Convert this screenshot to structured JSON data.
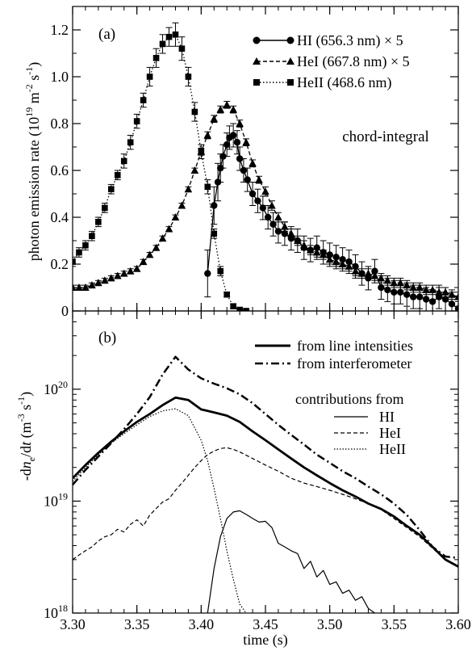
{
  "chart_data": [
    {
      "panel_label": "(a)",
      "type": "scatter",
      "ylabel": "photon emission rate (10^19 m^-2 s^-1)",
      "ylabel_parts": {
        "main": "photon emission rate (10",
        "exp1": "19",
        "mid1": " m",
        "exp2": "-2",
        "mid2": " s",
        "exp3": "-1",
        "end": ")"
      },
      "xlim": [
        3.3,
        3.6
      ],
      "ylim": [
        0,
        1.3
      ],
      "yticks": [
        0,
        0.2,
        0.4,
        0.6,
        0.8,
        1.0,
        1.2
      ],
      "ytick_labels": [
        "0",
        "0.2",
        "0.4",
        "0.6",
        "0.8",
        "1.0",
        "1.2"
      ],
      "annotation": "chord-integral",
      "legend_position": "top-right",
      "series": [
        {
          "name": "HI (656.3 nm) × 5",
          "marker": "circle",
          "linestyle": "solid",
          "x": [
            3.405,
            3.41,
            3.413,
            3.415,
            3.417,
            3.42,
            3.422,
            3.425,
            3.428,
            3.43,
            3.433,
            3.436,
            3.44,
            3.444,
            3.448,
            3.452,
            3.456,
            3.46,
            3.465,
            3.47,
            3.475,
            3.48,
            3.485,
            3.49,
            3.495,
            3.5,
            3.505,
            3.51,
            3.515,
            3.52,
            3.525,
            3.53,
            3.535,
            3.54,
            3.545,
            3.55,
            3.555,
            3.56,
            3.565,
            3.57,
            3.575,
            3.58,
            3.585,
            3.59,
            3.595,
            3.6
          ],
          "y": [
            0.16,
            0.45,
            0.55,
            0.61,
            0.66,
            0.71,
            0.74,
            0.75,
            0.72,
            0.65,
            0.6,
            0.56,
            0.5,
            0.47,
            0.44,
            0.4,
            0.37,
            0.34,
            0.33,
            0.31,
            0.3,
            0.27,
            0.26,
            0.27,
            0.25,
            0.24,
            0.23,
            0.22,
            0.21,
            0.19,
            0.16,
            0.14,
            0.17,
            0.1,
            0.09,
            0.08,
            0.08,
            0.07,
            0.06,
            0.06,
            0.05,
            0.04,
            0.06,
            0.05,
            0.03,
            0.01
          ],
          "yerr": [
            0.1,
            0.08,
            0.08,
            0.06,
            0.05,
            0.05,
            0.05,
            0.05,
            0.05,
            0.05,
            0.05,
            0.05,
            0.05,
            0.05,
            0.05,
            0.05,
            0.05,
            0.05,
            0.05,
            0.05,
            0.05,
            0.05,
            0.05,
            0.05,
            0.05,
            0.05,
            0.05,
            0.05,
            0.05,
            0.05,
            0.05,
            0.05,
            0.05,
            0.05,
            0.05,
            0.05,
            0.05,
            0.05,
            0.05,
            0.05,
            0.05,
            0.05,
            0.05,
            0.05,
            0.05,
            0.05
          ]
        },
        {
          "name": "HeI (667.8 nm) × 5",
          "marker": "triangle",
          "linestyle": "dashed",
          "x": [
            3.3,
            3.305,
            3.31,
            3.315,
            3.32,
            3.325,
            3.33,
            3.335,
            3.34,
            3.345,
            3.35,
            3.355,
            3.36,
            3.365,
            3.37,
            3.375,
            3.38,
            3.385,
            3.39,
            3.395,
            3.4,
            3.405,
            3.41,
            3.415,
            3.42,
            3.425,
            3.43,
            3.435,
            3.44,
            3.445,
            3.45,
            3.455,
            3.46,
            3.465,
            3.47,
            3.475,
            3.48,
            3.485,
            3.49,
            3.495,
            3.5,
            3.505,
            3.51,
            3.515,
            3.52,
            3.525,
            3.53,
            3.535,
            3.54,
            3.545,
            3.55,
            3.555,
            3.56,
            3.565,
            3.57,
            3.575,
            3.58,
            3.585,
            3.59,
            3.595,
            3.6
          ],
          "y": [
            0.1,
            0.1,
            0.1,
            0.11,
            0.12,
            0.13,
            0.14,
            0.15,
            0.16,
            0.17,
            0.18,
            0.21,
            0.24,
            0.27,
            0.31,
            0.35,
            0.4,
            0.45,
            0.52,
            0.6,
            0.68,
            0.75,
            0.82,
            0.86,
            0.88,
            0.86,
            0.8,
            0.72,
            0.63,
            0.56,
            0.51,
            0.45,
            0.4,
            0.36,
            0.33,
            0.3,
            0.28,
            0.26,
            0.25,
            0.24,
            0.22,
            0.21,
            0.2,
            0.19,
            0.17,
            0.16,
            0.16,
            0.15,
            0.14,
            0.13,
            0.12,
            0.12,
            0.11,
            0.1,
            0.1,
            0.09,
            0.09,
            0.08,
            0.08,
            0.07,
            0.06
          ],
          "yerr": [
            0.01,
            0.01,
            0.01,
            0.01,
            0.01,
            0.01,
            0.01,
            0.01,
            0.01,
            0.01,
            0.01,
            0.01,
            0.01,
            0.01,
            0.01,
            0.01,
            0.01,
            0.01,
            0.01,
            0.01,
            0.015,
            0.015,
            0.015,
            0.015,
            0.015,
            0.015,
            0.015,
            0.015,
            0.015,
            0.015,
            0.02,
            0.02,
            0.02,
            0.02,
            0.02,
            0.02,
            0.02,
            0.02,
            0.02,
            0.02,
            0.02,
            0.02,
            0.02,
            0.02,
            0.02,
            0.02,
            0.02,
            0.02,
            0.02,
            0.02,
            0.02,
            0.02,
            0.02,
            0.02,
            0.02,
            0.02,
            0.02,
            0.02,
            0.02,
            0.02,
            0.02
          ]
        },
        {
          "name": "HeII (468.6 nm)",
          "marker": "square",
          "linestyle": "dotted",
          "x": [
            3.3,
            3.305,
            3.31,
            3.315,
            3.32,
            3.325,
            3.33,
            3.335,
            3.34,
            3.345,
            3.35,
            3.355,
            3.36,
            3.365,
            3.37,
            3.375,
            3.38,
            3.385,
            3.39,
            3.395,
            3.4,
            3.405,
            3.41,
            3.415,
            3.42,
            3.425,
            3.43,
            3.435
          ],
          "y": [
            0.21,
            0.25,
            0.28,
            0.32,
            0.38,
            0.44,
            0.52,
            0.58,
            0.64,
            0.72,
            0.81,
            0.9,
            1.0,
            1.08,
            1.14,
            1.17,
            1.18,
            1.12,
            1.0,
            0.85,
            0.68,
            0.53,
            0.33,
            0.17,
            0.07,
            0.02,
            0.005,
            0.0
          ],
          "yerr": [
            0.02,
            0.02,
            0.02,
            0.02,
            0.02,
            0.02,
            0.02,
            0.02,
            0.03,
            0.03,
            0.03,
            0.03,
            0.04,
            0.04,
            0.04,
            0.04,
            0.05,
            0.05,
            0.04,
            0.04,
            0.03,
            0.03,
            0.02,
            0.02,
            0.01,
            0.01,
            0.005,
            0.005
          ]
        }
      ]
    },
    {
      "panel_label": "(b)",
      "type": "line",
      "ylabel_parts": {
        "pre": "-d",
        "n": "n",
        "sub": "e",
        "slash": "/d",
        "t": "t",
        "space": " (m",
        "exp1": "-3",
        "mid": " s",
        "exp2": "-1",
        "end": ")"
      },
      "xlabel": "time (s)",
      "xlim": [
        3.3,
        3.6
      ],
      "ylim": [
        1e+18,
        5e+20
      ],
      "yscale": "log",
      "xticks": [
        3.3,
        3.35,
        3.4,
        3.45,
        3.5,
        3.55,
        3.6
      ],
      "xtick_labels": [
        "3.30",
        "3.35",
        "3.40",
        "3.45",
        "3.50",
        "3.55",
        "3.60"
      ],
      "ytick_labels": [
        {
          "value": 1e+18,
          "base": "10",
          "exp": "18"
        },
        {
          "value": 1e+19,
          "base": "10",
          "exp": "19"
        },
        {
          "value": 1e+20,
          "base": "10",
          "exp": "20"
        }
      ],
      "legend_position": "top-right",
      "contributions_heading": "contributions from",
      "series": [
        {
          "name": "from line intensities",
          "linestyle": "solid-thick",
          "x": [
            3.3,
            3.31,
            3.32,
            3.33,
            3.34,
            3.35,
            3.36,
            3.37,
            3.38,
            3.39,
            3.4,
            3.41,
            3.42,
            3.43,
            3.44,
            3.45,
            3.46,
            3.47,
            3.48,
            3.49,
            3.5,
            3.51,
            3.52,
            3.53,
            3.54,
            3.55,
            3.56,
            3.57,
            3.58,
            3.59,
            3.6
          ],
          "y": [
            1.6e+19,
            2.1e+19,
            2.7e+19,
            3.4e+19,
            4.2e+19,
            5.1e+19,
            6e+19,
            7.2e+19,
            8.4e+19,
            8e+19,
            6.6e+19,
            6.2e+19,
            5.8e+19,
            5.1e+19,
            4.2e+19,
            3.5e+19,
            2.9e+19,
            2.4e+19,
            2e+19,
            1.7e+19,
            1.45e+19,
            1.25e+19,
            1.1e+19,
            9.5e+18,
            8.5e+18,
            7.3e+18,
            6e+18,
            5e+18,
            3.9e+18,
            3e+18,
            2.6e+18
          ]
        },
        {
          "name": "from interferometer",
          "linestyle": "dashdot",
          "x": [
            3.3,
            3.31,
            3.32,
            3.33,
            3.34,
            3.35,
            3.36,
            3.37,
            3.38,
            3.39,
            3.4,
            3.41,
            3.42,
            3.43,
            3.44,
            3.45,
            3.46,
            3.47,
            3.48,
            3.49,
            3.5,
            3.51,
            3.52,
            3.53,
            3.54,
            3.55,
            3.56,
            3.57,
            3.58,
            3.59,
            3.6
          ],
          "y": [
            1.4e+19,
            1.9e+19,
            2.5e+19,
            3.3e+19,
            4.4e+19,
            6e+19,
            8.5e+19,
            1.35e+20,
            1.95e+20,
            1.5e+20,
            1.25e+20,
            1.12e+20,
            1.02e+20,
            9e+19,
            7.5e+19,
            6e+19,
            4.8e+19,
            3.9e+19,
            3.2e+19,
            2.6e+19,
            2.2e+19,
            1.85e+19,
            1.6e+19,
            1.35e+19,
            1.15e+19,
            9.5e+18,
            7.5e+18,
            5.5e+18,
            3.9e+18,
            3.2e+18,
            3.1e+18
          ]
        },
        {
          "name": "HI",
          "linestyle": "solid-thin",
          "x": [
            3.405,
            3.41,
            3.415,
            3.42,
            3.425,
            3.43,
            3.435,
            3.44,
            3.445,
            3.45,
            3.455,
            3.46,
            3.465,
            3.47,
            3.475,
            3.48,
            3.485,
            3.49,
            3.495,
            3.5,
            3.505,
            3.51,
            3.515,
            3.52,
            3.525,
            3.53,
            3.535
          ],
          "y": [
            1e+18,
            2.5e+18,
            4.8e+18,
            7e+18,
            8e+18,
            8.2e+18,
            7.6e+18,
            7e+18,
            6.5e+18,
            6.6e+18,
            5.8e+18,
            4.2e+18,
            3.9e+18,
            3.6e+18,
            3.4e+18,
            2.5e+18,
            2.9e+18,
            2.1e+18,
            2.4e+18,
            1.8e+18,
            1.9e+18,
            1.5e+18,
            1.6e+18,
            1.3e+18,
            1.4e+18,
            1.1e+18,
            1e+18
          ]
        },
        {
          "name": "HeI",
          "linestyle": "dashed",
          "x": [
            3.3,
            3.305,
            3.31,
            3.315,
            3.32,
            3.325,
            3.33,
            3.335,
            3.34,
            3.345,
            3.35,
            3.355,
            3.36,
            3.365,
            3.37,
            3.375,
            3.38,
            3.385,
            3.39,
            3.395,
            3.4,
            3.405,
            3.41,
            3.415,
            3.42,
            3.425,
            3.43,
            3.44,
            3.45,
            3.46,
            3.47,
            3.48,
            3.49,
            3.5,
            3.51,
            3.52,
            3.53,
            3.54,
            3.55,
            3.56,
            3.57,
            3.58,
            3.59,
            3.6
          ],
          "y": [
            3e+18,
            3.3e+18,
            3.6e+18,
            3.9e+18,
            4.4e+18,
            4.8e+18,
            5e+18,
            5.6e+18,
            5.3e+18,
            6.2e+18,
            6.8e+18,
            6e+18,
            7.5e+18,
            8.6e+18,
            9.8e+18,
            1.05e+19,
            1.25e+19,
            1.45e+19,
            1.7e+19,
            2e+19,
            2.3e+19,
            2.6e+19,
            2.8e+19,
            2.95e+19,
            3e+19,
            2.9e+19,
            2.75e+19,
            2.4e+19,
            2.1e+19,
            1.85e+19,
            1.6e+19,
            1.45e+19,
            1.35e+19,
            1.25e+19,
            1.15e+19,
            1.05e+19,
            9.5e+18,
            8.4e+18,
            7e+18,
            5.8e+18,
            4.8e+18,
            3.8e+18,
            3e+18,
            2.6e+18
          ]
        },
        {
          "name": "HeII",
          "linestyle": "dotted",
          "x": [
            3.3,
            3.31,
            3.32,
            3.33,
            3.34,
            3.35,
            3.36,
            3.37,
            3.38,
            3.39,
            3.4,
            3.405,
            3.41,
            3.415,
            3.42,
            3.425,
            3.43,
            3.435
          ],
          "y": [
            1.5e+19,
            2e+19,
            2.6e+19,
            3.3e+19,
            4e+19,
            4.8e+19,
            5.7e+19,
            6.4e+19,
            6.7e+19,
            5.8e+19,
            3.5e+19,
            2.3e+19,
            1.3e+19,
            7e+18,
            3.6e+18,
            2e+18,
            1.2e+18,
            1e+18
          ]
        }
      ]
    }
  ]
}
